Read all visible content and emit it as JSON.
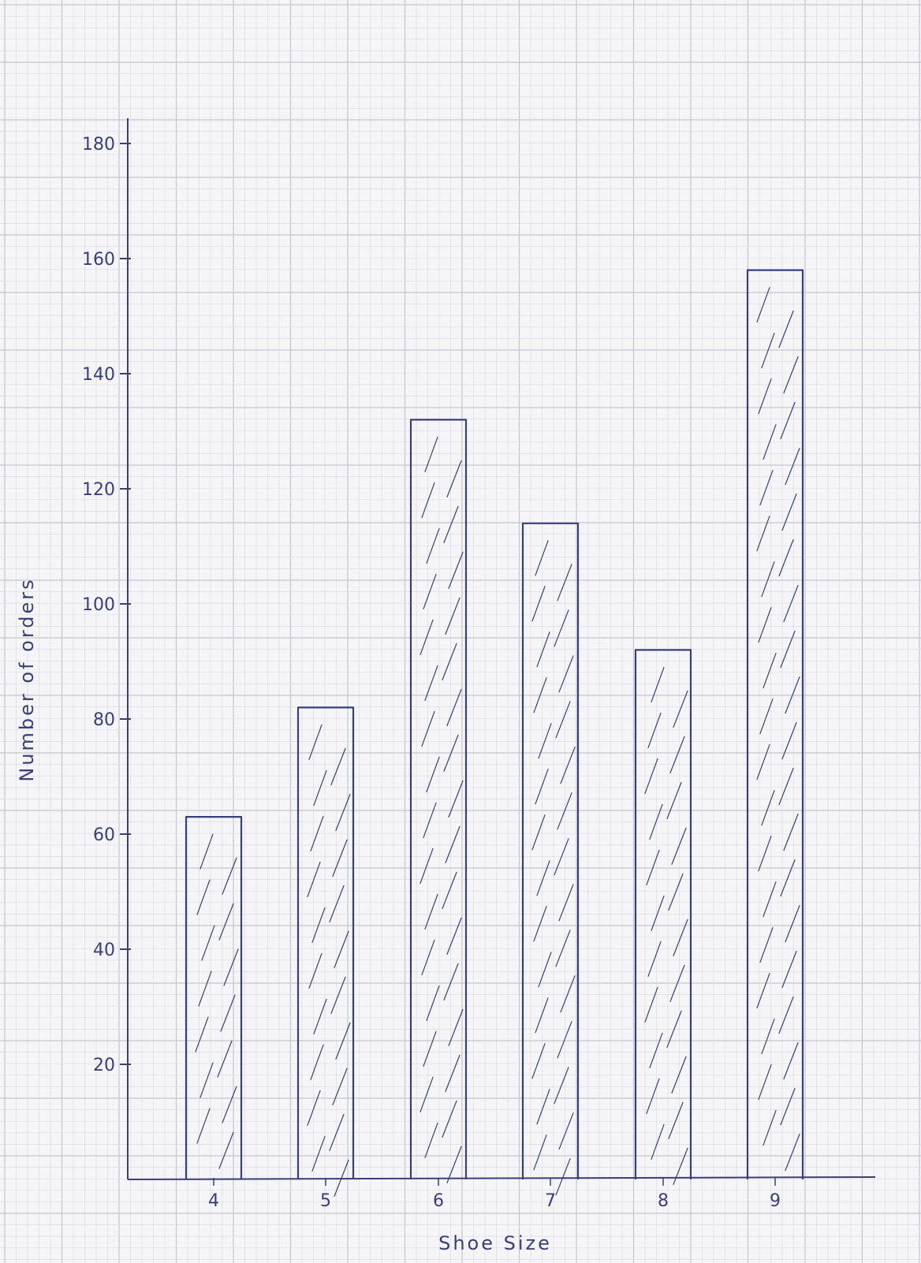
{
  "chart_data": {
    "type": "bar",
    "categories": [
      "4",
      "5",
      "6",
      "7",
      "8",
      "9"
    ],
    "values": [
      63,
      82,
      132,
      114,
      92,
      158
    ],
    "xlabel": "Shoe Size",
    "ylabel": "Number of orders",
    "ylim": [
      0,
      200
    ],
    "yticks": [
      20,
      40,
      60,
      80,
      100,
      120,
      140,
      160,
      180
    ],
    "grid": true,
    "bar_style": "hatched",
    "colors": {
      "ink": "#3a3f7a",
      "grid_minor": "#dcdde4",
      "grid_major": "#c4c6d0",
      "paper": "#f5f5f7"
    }
  }
}
